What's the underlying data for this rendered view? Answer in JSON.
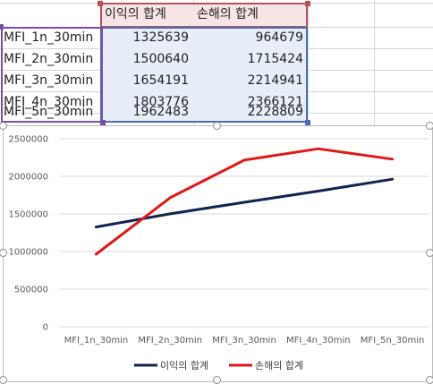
{
  "sheet": {
    "headers": [
      "이익의 합계",
      "손해의 합계"
    ],
    "rows": [
      {
        "label": "MFI_1n_30min",
        "profit": "1325639",
        "loss": "964679"
      },
      {
        "label": "MFI_2n_30min",
        "profit": "1500640",
        "loss": "1715424"
      },
      {
        "label": "MFI_3n_30min",
        "profit": "1654191",
        "loss": "2214941"
      },
      {
        "label": "MFI_4n_30min",
        "profit": "1803776",
        "loss": "2366121"
      },
      {
        "label": "MFI_5n_30min",
        "profit": "1962483",
        "loss": "2228809"
      }
    ],
    "range_colors": {
      "labels": "#7a4fa3",
      "headers": "#b5525b",
      "values": "#4a6fb0"
    }
  },
  "chart_data": {
    "type": "line",
    "categories": [
      "MFI_1n_30min",
      "MFI_2n_30min",
      "MFI_3n_30min",
      "MFI_4n_30min",
      "MFI_5n_30min"
    ],
    "series": [
      {
        "name": "이익의 합계",
        "color": "#0e2452",
        "values": [
          1325639,
          1500640,
          1654191,
          1803776,
          1962483
        ]
      },
      {
        "name": "손해의 합계",
        "color": "#e01a1a",
        "values": [
          964679,
          1715424,
          2214941,
          2366121,
          2228809
        ]
      }
    ],
    "ylim": [
      0,
      2500000
    ],
    "yticks": [
      0,
      500000,
      1000000,
      1500000,
      2000000,
      2500000
    ],
    "ytick_labels": [
      "0",
      "500000",
      "1000000",
      "1500000",
      "2000000",
      "2500000"
    ],
    "grid": true,
    "legend": "bottom",
    "title": "",
    "xlabel": "",
    "ylabel": ""
  }
}
